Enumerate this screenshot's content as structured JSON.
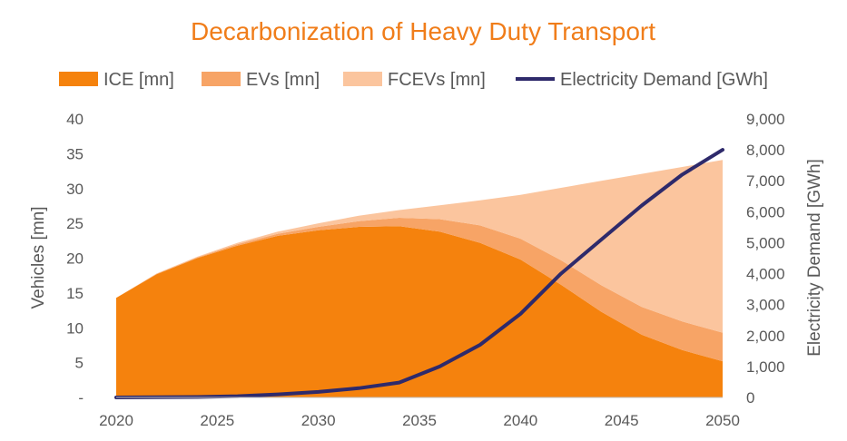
{
  "chart_data": {
    "type": "area",
    "title": "Decarbonization of Heavy Duty Transport",
    "x": [
      2020,
      2022,
      2024,
      2026,
      2028,
      2030,
      2032,
      2034,
      2036,
      2038,
      2040,
      2042,
      2044,
      2046,
      2048,
      2050
    ],
    "xticks": [
      "2020",
      "2025",
      "2030",
      "2035",
      "2040",
      "2045",
      "2050"
    ],
    "xlim": [
      2020,
      2050
    ],
    "ylabel": "Vehicles [mn]",
    "ylim": [
      0,
      40
    ],
    "yticks": [
      "-",
      "5",
      "10",
      "15",
      "20",
      "25",
      "30",
      "35",
      "40"
    ],
    "y2label": "Electricity Demand [GWh]",
    "y2lim": [
      0,
      9000
    ],
    "y2ticks": [
      "0",
      "1,000",
      "2,000",
      "3,000",
      "4,000",
      "5,000",
      "6,000",
      "7,000",
      "8,000",
      "9,000"
    ],
    "grid": false,
    "legend_position": "top",
    "stacked_series": [
      {
        "name": "ICE [mn]",
        "color": "#f5820d",
        "values": [
          14.3,
          17.7,
          20.0,
          21.8,
          23.2,
          24.0,
          24.5,
          24.6,
          23.8,
          22.2,
          19.8,
          16.2,
          12.3,
          9.0,
          6.8,
          5.2
        ]
      },
      {
        "name": "EVs [mn]",
        "color": "#f7a466",
        "values": [
          0,
          0.05,
          0.1,
          0.2,
          0.3,
          0.5,
          0.8,
          1.2,
          1.8,
          2.5,
          3.0,
          3.5,
          3.8,
          4.0,
          4.1,
          4.1
        ]
      },
      {
        "name": "FCEVs [mn]",
        "color": "#fbc59e",
        "values": [
          0,
          0.05,
          0.1,
          0.2,
          0.3,
          0.5,
          0.8,
          1.1,
          2.0,
          3.6,
          6.3,
          10.4,
          15.0,
          19.1,
          22.2,
          24.8
        ]
      }
    ],
    "line_series": {
      "name": "Electricity Demand [GWh]",
      "color": "#2e2a6b",
      "axis": "right",
      "values": [
        0,
        5,
        15,
        40,
        100,
        180,
        300,
        480,
        1000,
        1700,
        2700,
        4000,
        5100,
        6200,
        7200,
        8000
      ]
    }
  }
}
